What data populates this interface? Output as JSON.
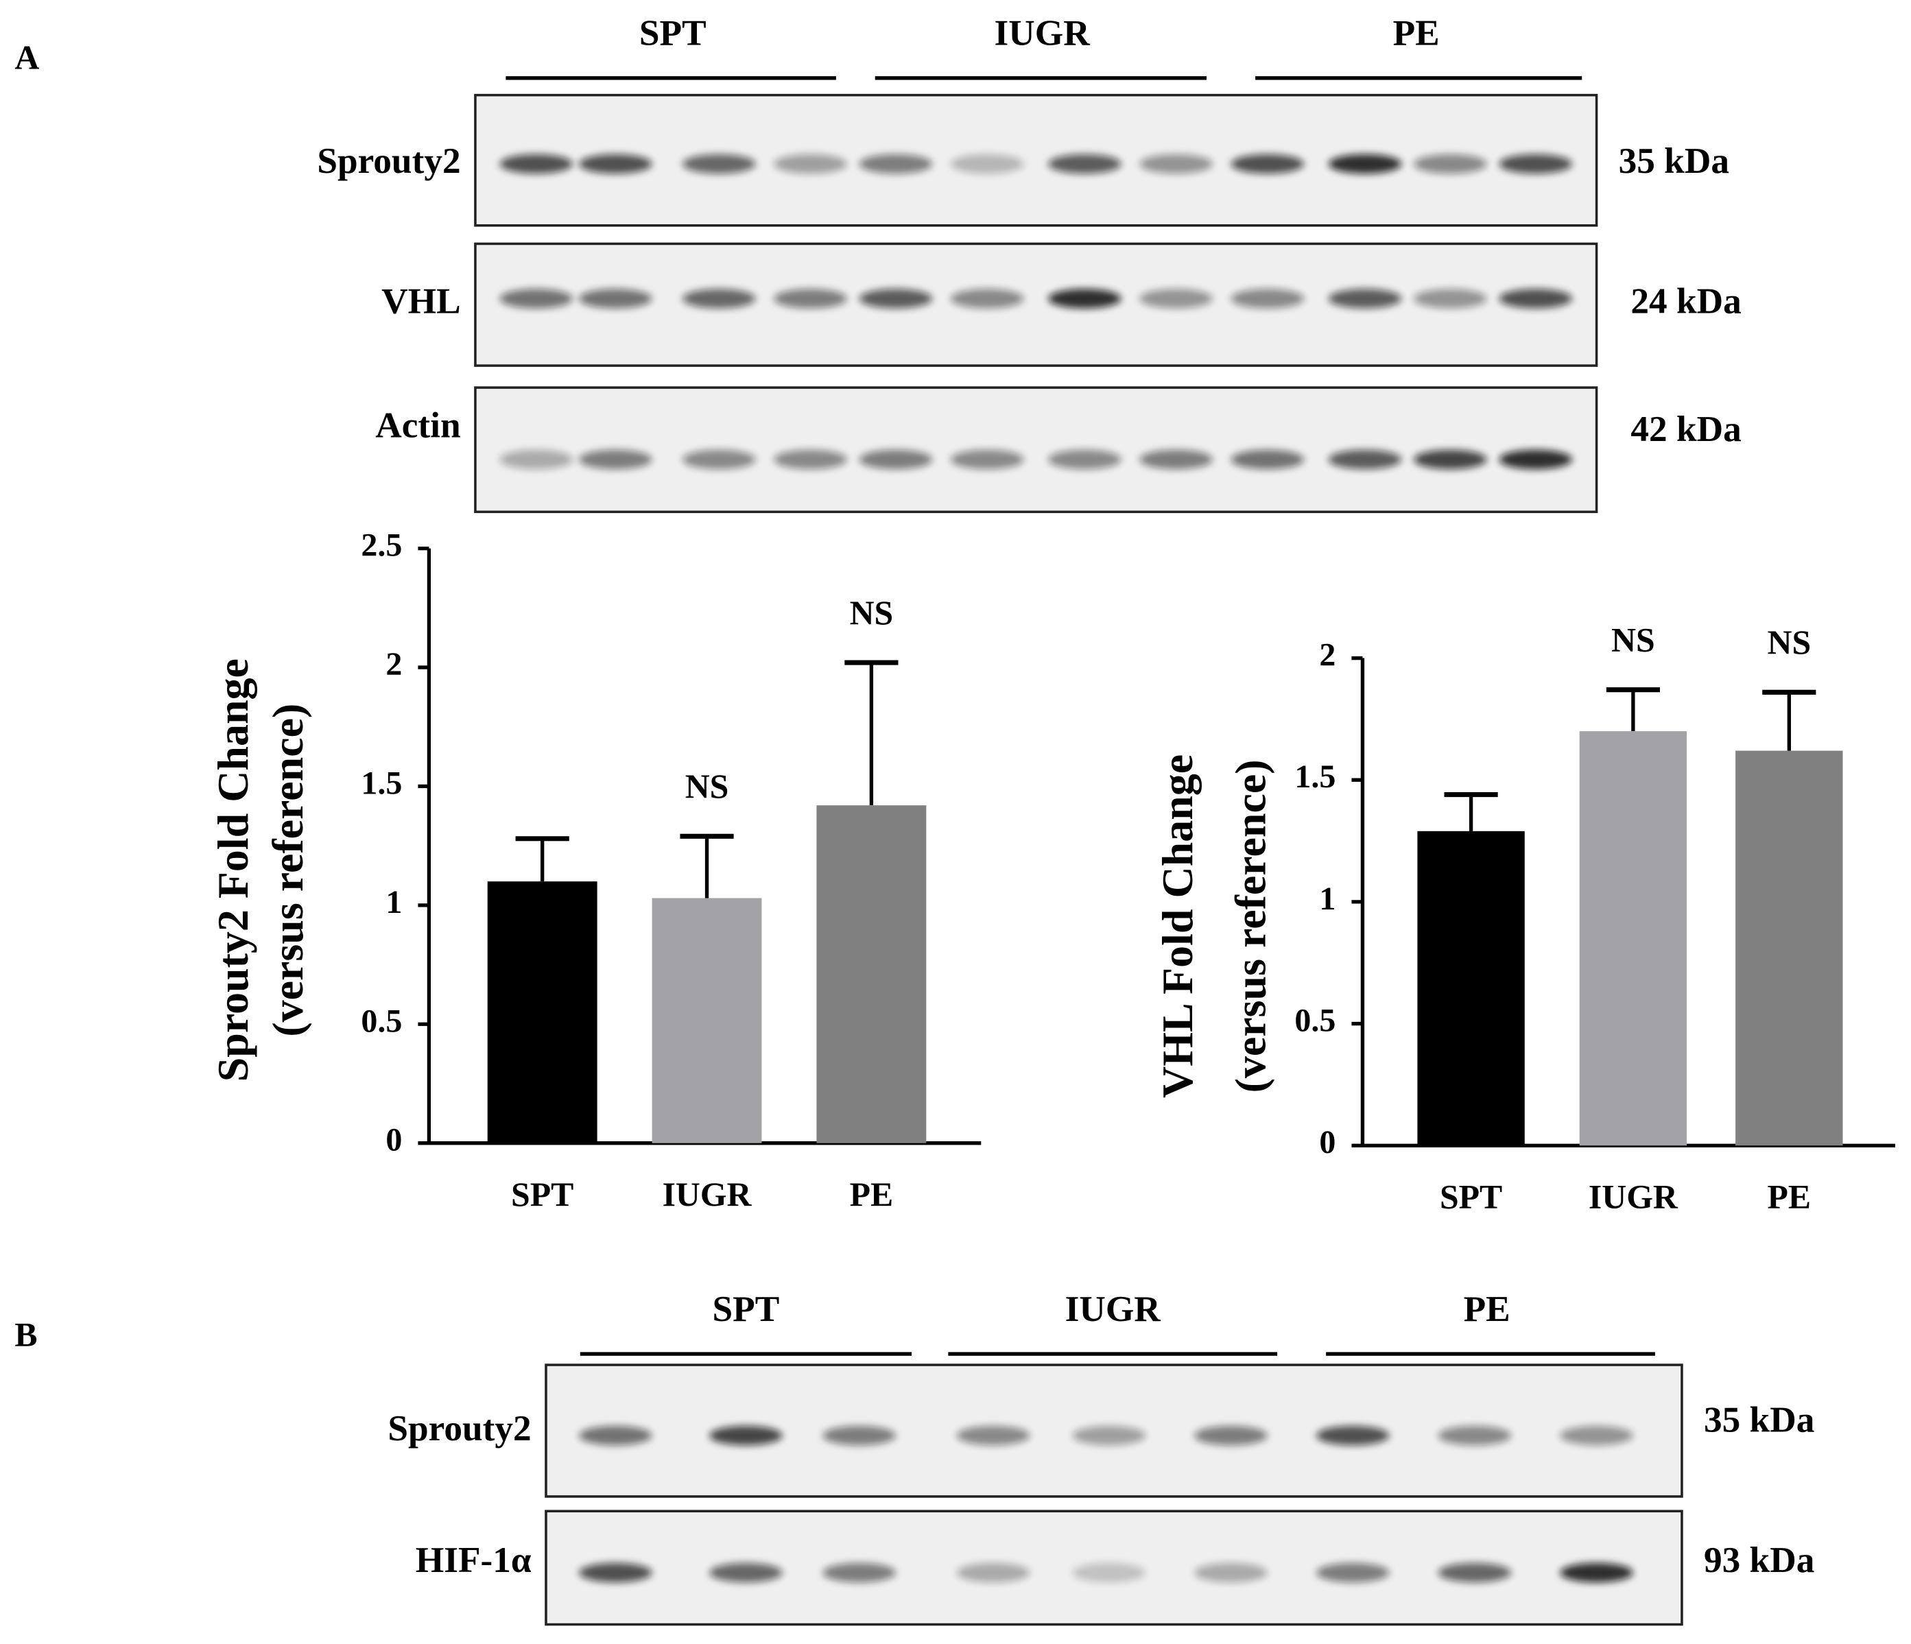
{
  "panel_a": {
    "label": "A",
    "groups": [
      "SPT",
      "IUGR",
      "PE"
    ],
    "blots": [
      {
        "protein": "Sprouty2",
        "size": "35 kDa"
      },
      {
        "protein": "VHL",
        "size": "24 kDa"
      },
      {
        "protein": "Actin",
        "size": "42 kDa"
      }
    ]
  },
  "chart_data": [
    {
      "type": "bar",
      "y_label": [
        "Sprouty2  Fold Change",
        "(versus  reference)"
      ],
      "categories": [
        "SPT",
        "IUGR",
        "PE"
      ],
      "values": [
        1.1,
        1.03,
        1.42
      ],
      "errors": [
        0.18,
        0.26,
        0.6
      ],
      "colors": [
        "#000000",
        "#a3a2a7",
        "#808080"
      ],
      "annotations": [
        {
          "category": "IUGR",
          "text": "NS"
        },
        {
          "category": "PE",
          "text": "NS"
        }
      ],
      "ylim": [
        0,
        2.5
      ],
      "yticks": [
        0,
        0.5,
        1,
        1.5,
        2,
        2.5
      ]
    },
    {
      "type": "bar",
      "y_label": [
        "VHL Fold Change",
        "(versus  reference)"
      ],
      "categories": [
        "SPT",
        "IUGR",
        "PE"
      ],
      "values": [
        1.29,
        1.7,
        1.62
      ],
      "errors": [
        0.15,
        0.17,
        0.24
      ],
      "colors": [
        "#000000",
        "#a3a2a7",
        "#808080"
      ],
      "annotations": [
        {
          "category": "IUGR",
          "text": "NS"
        },
        {
          "category": "PE",
          "text": "NS"
        }
      ],
      "ylim": [
        0,
        2
      ],
      "yticks": [
        0,
        0.5,
        1,
        1.5,
        2
      ]
    }
  ],
  "panel_b": {
    "label": "B",
    "groups": [
      "SPT",
      "IUGR",
      "PE"
    ],
    "blots": [
      {
        "protein": "Sprouty2",
        "size": "35 kDa"
      },
      {
        "protein": "HIF-1α",
        "size": "93 kDa"
      }
    ]
  }
}
